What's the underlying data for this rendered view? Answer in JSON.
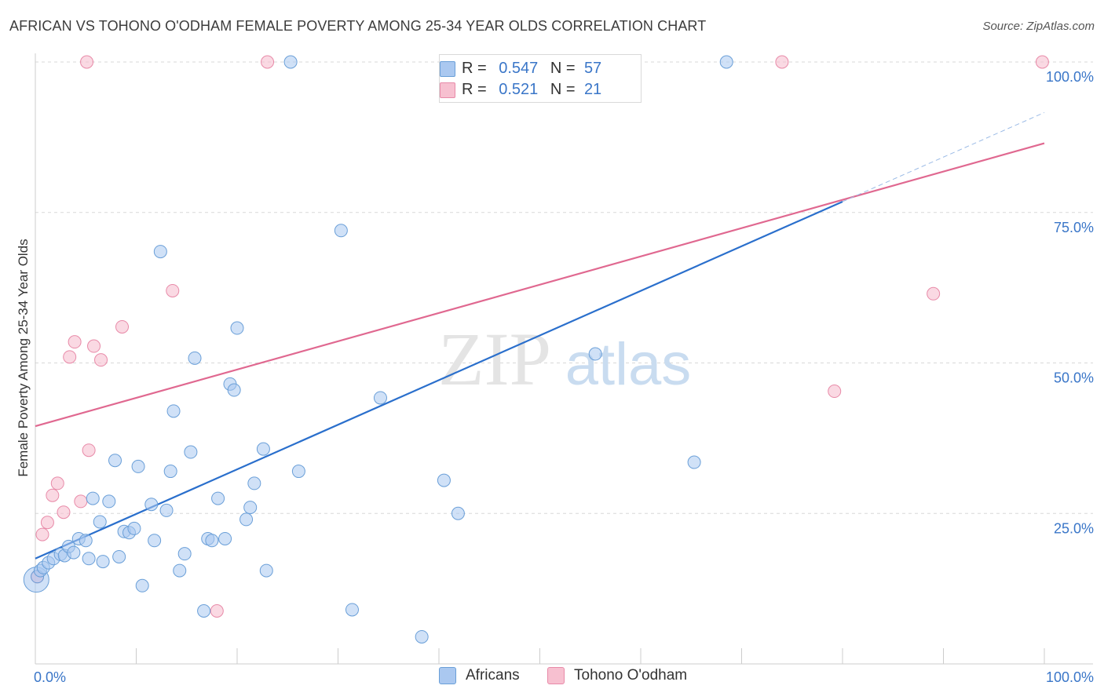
{
  "title": "AFRICAN VS TOHONO O'ODHAM FEMALE POVERTY AMONG 25-34 YEAR OLDS CORRELATION CHART",
  "source": "Source: ZipAtlas.com",
  "watermark": {
    "zip": "ZIP",
    "atlas": "atlas"
  },
  "colors": {
    "africans_fill": "#aac8f0",
    "africans_stroke": "#6a9fd8",
    "africans_line": "#2a6fcc",
    "tohono_fill": "#f7c0d0",
    "tohono_stroke": "#e88aa8",
    "tohono_line": "#e06890",
    "axis_label": "#3a76c8",
    "grid": "#d8d8d8"
  },
  "legend": {
    "rows": [
      {
        "r_label": "R =",
        "r_value": "0.547",
        "n_label": "N =",
        "n_value": "57"
      },
      {
        "r_label": "R =",
        "r_value": "0.521",
        "n_label": "N =",
        "n_value": "21"
      }
    ]
  },
  "chart_data": {
    "type": "scatter",
    "title": "AFRICAN VS TOHONO O'ODHAM FEMALE POVERTY AMONG 25-34 YEAR OLDS CORRELATION CHART",
    "xlabel": "",
    "ylabel": "Female Poverty Among 25-34 Year Olds",
    "xlim": [
      0,
      100
    ],
    "ylim": [
      0,
      100
    ],
    "x_tick_labels": [
      "0.0%",
      "100.0%"
    ],
    "y_tick_labels": [
      "25.0%",
      "50.0%",
      "75.0%",
      "100.0%"
    ],
    "y_tick_values": [
      25,
      50,
      75,
      100
    ],
    "legend_position": "bottom-center",
    "series": [
      {
        "name": "Africans",
        "R": 0.547,
        "N": 57,
        "trend": {
          "x": [
            0,
            80
          ],
          "y": [
            17.5,
            76.8
          ],
          "dashed_extension_to": [
            100,
            91.6
          ]
        },
        "points": [
          [
            0.2,
            14.5
          ],
          [
            0.5,
            15.5
          ],
          [
            0.8,
            16.0
          ],
          [
            1.3,
            16.8
          ],
          [
            1.8,
            17.5
          ],
          [
            2.5,
            18.2
          ],
          [
            2.9,
            18.0
          ],
          [
            3.3,
            19.5
          ],
          [
            3.8,
            18.5
          ],
          [
            4.3,
            20.8
          ],
          [
            5.0,
            20.5
          ],
          [
            5.3,
            17.5
          ],
          [
            5.7,
            27.5
          ],
          [
            6.4,
            23.6
          ],
          [
            6.7,
            17.0
          ],
          [
            7.3,
            27.0
          ],
          [
            7.9,
            33.8
          ],
          [
            8.3,
            17.8
          ],
          [
            8.8,
            22.0
          ],
          [
            9.3,
            21.8
          ],
          [
            9.8,
            22.5
          ],
          [
            10.2,
            32.8
          ],
          [
            10.6,
            13.0
          ],
          [
            11.5,
            26.5
          ],
          [
            11.8,
            20.5
          ],
          [
            12.4,
            68.5
          ],
          [
            13.0,
            25.5
          ],
          [
            13.4,
            32.0
          ],
          [
            13.7,
            42.0
          ],
          [
            14.3,
            15.5
          ],
          [
            14.8,
            18.3
          ],
          [
            15.4,
            35.2
          ],
          [
            15.8,
            50.8
          ],
          [
            16.7,
            8.8
          ],
          [
            17.1,
            20.8
          ],
          [
            17.5,
            20.5
          ],
          [
            18.1,
            27.5
          ],
          [
            18.8,
            20.8
          ],
          [
            19.3,
            46.5
          ],
          [
            19.7,
            45.5
          ],
          [
            20.0,
            55.8
          ],
          [
            20.9,
            24.0
          ],
          [
            21.3,
            26.0
          ],
          [
            21.7,
            30.0
          ],
          [
            22.6,
            35.7
          ],
          [
            22.9,
            15.5
          ],
          [
            25.3,
            100.0
          ],
          [
            26.1,
            32.0
          ],
          [
            30.3,
            72.0
          ],
          [
            31.4,
            9.0
          ],
          [
            34.2,
            44.2
          ],
          [
            38.3,
            4.5
          ],
          [
            40.5,
            30.5
          ],
          [
            41.9,
            25.0
          ],
          [
            55.5,
            51.5
          ],
          [
            65.3,
            33.5
          ],
          [
            68.5,
            100.0
          ]
        ]
      },
      {
        "name": "Tohono O'odham",
        "R": 0.521,
        "N": 21,
        "trend": {
          "x": [
            0,
            100
          ],
          "y": [
            39.5,
            86.5
          ]
        },
        "points": [
          [
            0.2,
            14.5
          ],
          [
            0.7,
            21.5
          ],
          [
            1.2,
            23.5
          ],
          [
            1.7,
            28.0
          ],
          [
            2.2,
            30.0
          ],
          [
            2.8,
            25.2
          ],
          [
            3.4,
            51.0
          ],
          [
            3.9,
            53.5
          ],
          [
            4.5,
            27.0
          ],
          [
            5.3,
            35.5
          ],
          [
            5.8,
            52.8
          ],
          [
            6.5,
            50.5
          ],
          [
            8.6,
            56.0
          ],
          [
            13.6,
            62.0
          ],
          [
            18.0,
            8.8
          ],
          [
            5.1,
            100.0
          ],
          [
            23.0,
            100.0
          ],
          [
            74.0,
            100.0
          ],
          [
            79.2,
            45.3
          ],
          [
            89.0,
            61.5
          ],
          [
            99.8,
            100.0
          ]
        ]
      }
    ]
  },
  "bottom_legend": {
    "africans": "Africans",
    "tohono": "Tohono O'odham"
  }
}
